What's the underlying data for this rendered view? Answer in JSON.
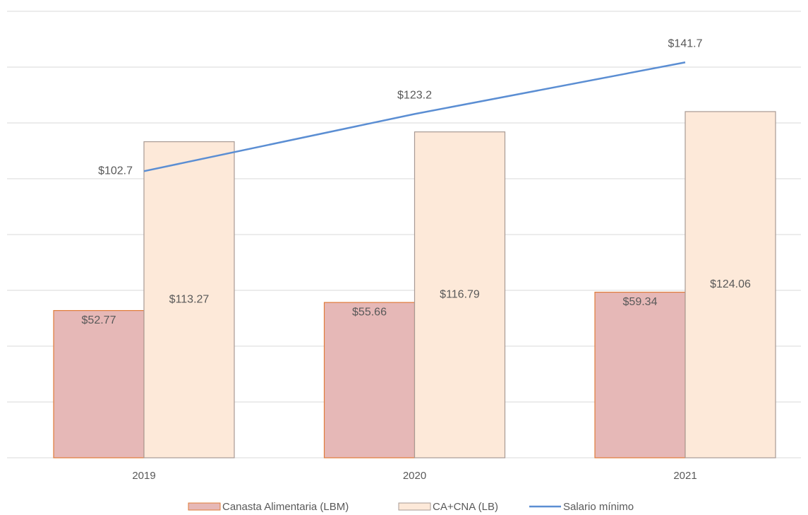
{
  "chart_data": {
    "type": "bar",
    "categories": [
      "2019",
      "2020",
      "2021"
    ],
    "series": [
      {
        "name": "Canasta Alimentaria (LBM)",
        "type": "bar",
        "color": "#e6b8b7",
        "stroke": "#e07b39",
        "values": [
          52.77,
          55.66,
          59.34
        ],
        "value_labels": [
          "$52.77",
          "$55.66",
          "$59.34"
        ]
      },
      {
        "name": "CA+CNA (LB)",
        "type": "bar",
        "color": "#fde9d9",
        "stroke": "#a89a94",
        "values": [
          113.27,
          116.79,
          124.06
        ],
        "value_labels": [
          "$113.27",
          "$116.79",
          "$124.06"
        ]
      },
      {
        "name": "Salario mínimo",
        "type": "line",
        "color": "#5b8ed3",
        "values": [
          102.7,
          123.2,
          141.7
        ],
        "value_labels": [
          "$102.7",
          "$123.2",
          "$141.7"
        ]
      }
    ],
    "ylim": [
      0,
      160
    ],
    "yticks": [
      0,
      20,
      40,
      60,
      80,
      100,
      120,
      140,
      160
    ],
    "grid": true,
    "legend": "bottom"
  }
}
